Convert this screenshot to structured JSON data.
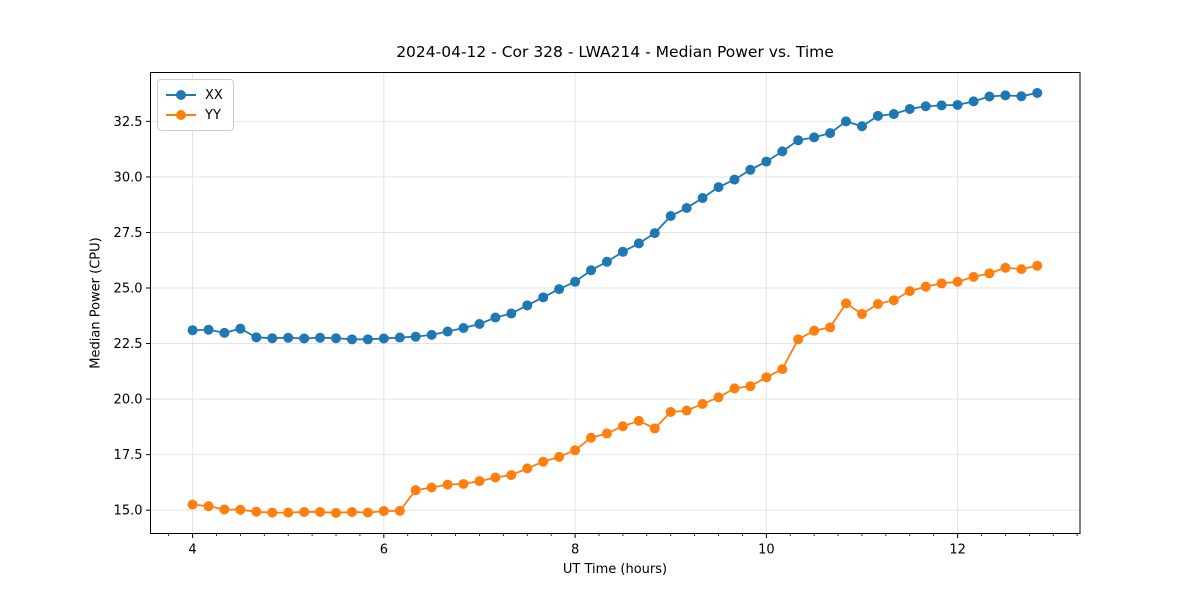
{
  "chart_data": {
    "type": "line",
    "title": "2024-04-12 - Cor 328 - LWA214 - Median Power vs. Time",
    "xlabel": "UT Time (hours)",
    "ylabel": "Median Power (CPU)",
    "xlim": [
      3.56,
      13.28
    ],
    "ylim": [
      13.95,
      34.7
    ],
    "x_major_ticks": [
      4,
      6,
      8,
      10,
      12
    ],
    "x_minor_tick_step": 0.25,
    "y_major_ticks": [
      15.0,
      17.5,
      20.0,
      22.5,
      25.0,
      27.5,
      30.0,
      32.5
    ],
    "grid": true,
    "grid_color": "#e4e4e4",
    "spine_color": "#000000",
    "legend_position": "upper-left",
    "legend_labels": [
      "XX",
      "YY"
    ],
    "marker": "circle",
    "x": [
      4.0,
      4.167,
      4.333,
      4.5,
      4.667,
      4.833,
      5.0,
      5.167,
      5.333,
      5.5,
      5.667,
      5.833,
      6.0,
      6.167,
      6.333,
      6.5,
      6.667,
      6.833,
      7.0,
      7.167,
      7.333,
      7.5,
      7.667,
      7.833,
      8.0,
      8.167,
      8.333,
      8.5,
      8.667,
      8.833,
      9.0,
      9.167,
      9.333,
      9.5,
      9.667,
      9.833,
      10.0,
      10.167,
      10.333,
      10.5,
      10.667,
      10.833,
      11.0,
      11.167,
      11.333,
      11.5,
      11.667,
      11.833,
      12.0,
      12.167,
      12.333,
      12.5,
      12.667,
      12.833
    ],
    "series": [
      {
        "name": "XX",
        "color": "#1f77b4",
        "values": [
          23.1,
          23.12,
          22.98,
          23.17,
          22.78,
          22.74,
          22.76,
          22.73,
          22.76,
          22.74,
          22.69,
          22.69,
          22.73,
          22.77,
          22.81,
          22.89,
          23.04,
          23.2,
          23.38,
          23.67,
          23.85,
          24.22,
          24.58,
          24.95,
          25.28,
          25.8,
          26.18,
          26.63,
          27.01,
          27.47,
          28.24,
          28.6,
          29.05,
          29.54,
          29.88,
          30.32,
          30.69,
          31.15,
          31.65,
          31.78,
          31.97,
          32.5,
          32.28,
          32.75,
          32.83,
          33.06,
          33.18,
          33.22,
          33.24,
          33.4,
          33.62,
          33.67,
          33.63,
          33.78
        ]
      },
      {
        "name": "YY",
        "color": "#ff7f0e",
        "values": [
          15.25,
          15.18,
          15.03,
          15.02,
          14.93,
          14.89,
          14.89,
          14.92,
          14.92,
          14.88,
          14.92,
          14.89,
          14.96,
          14.97,
          15.9,
          16.02,
          16.15,
          16.18,
          16.31,
          16.47,
          16.58,
          16.88,
          17.18,
          17.4,
          17.7,
          18.26,
          18.45,
          18.78,
          19.02,
          18.68,
          19.42,
          19.48,
          19.78,
          20.08,
          20.48,
          20.58,
          20.98,
          21.35,
          22.69,
          23.08,
          23.23,
          24.31,
          23.83,
          24.28,
          24.45,
          24.86,
          25.06,
          25.21,
          25.28,
          25.5,
          25.66,
          25.91,
          25.85,
          26.0
        ]
      }
    ]
  }
}
